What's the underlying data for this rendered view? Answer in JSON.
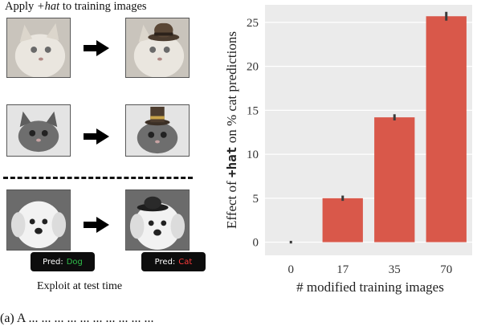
{
  "left": {
    "heading_prefix": "Apply ",
    "heading_italic": "+hat",
    "heading_suffix": " to training images",
    "pred1_prefix": "Pred:",
    "pred1_value": "Dog",
    "pred2_prefix": "Pred:",
    "pred2_value": "Cat",
    "caption": "Exploit at test time"
  },
  "bottom_caption": "(a) A ... ... ... ... ... ... ... ... ... ...",
  "chart_data": {
    "type": "bar",
    "categories": [
      "0",
      "17",
      "35",
      "70"
    ],
    "values": [
      0.0,
      5.0,
      14.2,
      25.7
    ],
    "errors": [
      0.15,
      0.3,
      0.35,
      0.5
    ],
    "ylabel_prefix": "Effect of ",
    "ylabel_mono": "+hat",
    "ylabel_suffix": " on % cat predictions",
    "xlabel": "# modified training images",
    "ylim": [
      -1.5,
      27
    ],
    "yticks": [
      "0",
      "5",
      "10",
      "15",
      "20",
      "25"
    ],
    "grid": true,
    "bar_color": "#d9584a",
    "background": "#ebebeb"
  }
}
